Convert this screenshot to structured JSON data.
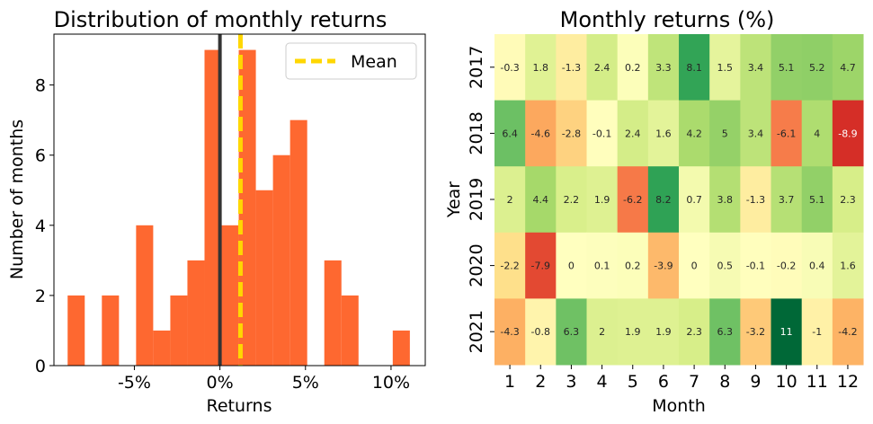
{
  "chart_data": [
    {
      "type": "bar",
      "title": "Distribution of monthly returns",
      "xlabel": "Returns",
      "ylabel": "Number of months",
      "xlim": [
        -0.097,
        0.12
      ],
      "ylim": [
        0,
        9.45
      ],
      "x_tick_values": [
        -0.05,
        0,
        0.05,
        0.1
      ],
      "x_tick_labels": [
        "-5%",
        "0%",
        "5%",
        "10%"
      ],
      "y_tick_values": [
        0,
        2,
        4,
        6,
        8
      ],
      "y_tick_labels": [
        "0",
        "2",
        "4",
        "6",
        "8"
      ],
      "bar_color": "#fe6830",
      "bins": [
        {
          "from": -0.089,
          "to": -0.079,
          "count": 2
        },
        {
          "from": -0.079,
          "to": -0.069,
          "count": 0
        },
        {
          "from": -0.069,
          "to": -0.059,
          "count": 2
        },
        {
          "from": -0.059,
          "to": -0.049,
          "count": 0
        },
        {
          "from": -0.049,
          "to": -0.039,
          "count": 4
        },
        {
          "from": -0.039,
          "to": -0.029,
          "count": 1
        },
        {
          "from": -0.029,
          "to": -0.019,
          "count": 2
        },
        {
          "from": -0.019,
          "to": -0.009,
          "count": 3
        },
        {
          "from": -0.009,
          "to": 0.001,
          "count": 9
        },
        {
          "from": 0.001,
          "to": 0.011,
          "count": 4
        },
        {
          "from": 0.011,
          "to": 0.021,
          "count": 9
        },
        {
          "from": 0.021,
          "to": 0.031,
          "count": 5
        },
        {
          "from": 0.031,
          "to": 0.041,
          "count": 6
        },
        {
          "from": 0.041,
          "to": 0.051,
          "count": 7
        },
        {
          "from": 0.051,
          "to": 0.061,
          "count": 0
        },
        {
          "from": 0.061,
          "to": 0.071,
          "count": 3
        },
        {
          "from": 0.071,
          "to": 0.081,
          "count": 2
        },
        {
          "from": 0.081,
          "to": 0.091,
          "count": 0
        },
        {
          "from": 0.091,
          "to": 0.101,
          "count": 0
        },
        {
          "from": 0.101,
          "to": 0.111,
          "count": 1
        }
      ],
      "zero_line": {
        "x": 0,
        "color": "#333333"
      },
      "mean_line": {
        "x": 0.012,
        "color": "#ffd700",
        "label": "Mean"
      },
      "legend_placement": "top-right"
    },
    {
      "type": "heatmap",
      "title": "Monthly returns (%)",
      "xlabel": "Month",
      "ylabel": "Year",
      "months": [
        "1",
        "2",
        "3",
        "4",
        "5",
        "6",
        "7",
        "8",
        "9",
        "10",
        "11",
        "12"
      ],
      "years": [
        "2017",
        "2018",
        "2019",
        "2020",
        "2021"
      ],
      "color_scale": "RdYlGn",
      "color_center": 0,
      "color_range": [
        -11,
        11
      ],
      "values": [
        [
          "-0.3",
          "1.8",
          "-1.3",
          "2.4",
          "0.2",
          "3.3",
          "8.1",
          "1.5",
          "3.4",
          "5.1",
          "5.2",
          "4.7"
        ],
        [
          "6.4",
          "-4.6",
          "-2.8",
          "-0.1",
          "2.4",
          "1.6",
          "4.2",
          "5",
          "3.4",
          "-6.1",
          "4",
          "-8.9"
        ],
        [
          "2",
          "4.4",
          "2.2",
          "1.9",
          "-6.2",
          "8.2",
          "0.7",
          "3.8",
          "-1.3",
          "3.7",
          "5.1",
          "2.3"
        ],
        [
          "-2.2",
          "-7.9",
          "0",
          "0.1",
          "0.2",
          "-3.9",
          "0",
          "0.5",
          "-0.1",
          "-0.2",
          "0.4",
          "1.6"
        ],
        [
          "-4.3",
          "-0.8",
          "6.3",
          "2",
          "1.9",
          "1.9",
          "2.3",
          "6.3",
          "-3.2",
          "11",
          "-1",
          "-4.2"
        ]
      ]
    }
  ]
}
